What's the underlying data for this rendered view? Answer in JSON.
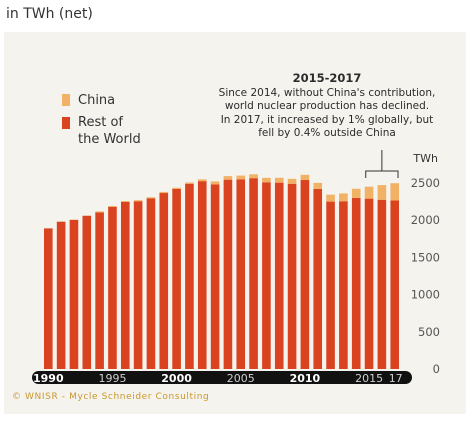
{
  "header": {
    "unit_title": "in TWh (net)"
  },
  "annotation": {
    "title": "2015-2017",
    "lines": [
      "Since 2014, without China's contribution,",
      "world nuclear production has declined.",
      "In 2017, it increased by 1% globally, but",
      "fell by 0.4% outside China"
    ]
  },
  "credit": "© WNISR - Mycle Schneider Consulting",
  "colors": {
    "rest": "#d9431f",
    "china": "#f2b266",
    "axis_band": "#111111"
  },
  "chart_data": {
    "type": "bar",
    "stacked": true,
    "unit_label": "TWh",
    "x": [
      1990,
      1991,
      1992,
      1993,
      1994,
      1995,
      1996,
      1997,
      1998,
      1999,
      2000,
      2001,
      2002,
      2003,
      2004,
      2005,
      2006,
      2007,
      2008,
      2009,
      2010,
      2011,
      2012,
      2013,
      2014,
      2015,
      2016,
      2017
    ],
    "series": [
      {
        "name": "Rest of the World",
        "color": "#d9431f",
        "values": [
          1890,
          1980,
          2005,
          2060,
          2105,
          2180,
          2245,
          2255,
          2295,
          2365,
          2420,
          2490,
          2525,
          2480,
          2545,
          2550,
          2565,
          2510,
          2505,
          2490,
          2540,
          2420,
          2250,
          2255,
          2300,
          2290,
          2275,
          2265
        ]
      },
      {
        "name": "China",
        "color": "#f2b266",
        "values": [
          0,
          0,
          0,
          2,
          13,
          12,
          13,
          14,
          13,
          15,
          16,
          17,
          24,
          41,
          48,
          50,
          52,
          59,
          65,
          66,
          70,
          82,
          93,
          105,
          123,
          161,
          197,
          232
        ]
      }
    ],
    "y_ticks": [
      0,
      500,
      1000,
      1500,
      2000,
      2500
    ],
    "ylim": [
      0,
      2700
    ],
    "x_tick_labels": [
      {
        "year": 1990,
        "label": "1990",
        "bold": true
      },
      {
        "year": 1995,
        "label": "1995",
        "bold": false
      },
      {
        "year": 2000,
        "label": "2000",
        "bold": true
      },
      {
        "year": 2005,
        "label": "2005",
        "bold": false
      },
      {
        "year": 2010,
        "label": "2010",
        "bold": true
      },
      {
        "year": 2015,
        "label": "2015",
        "bold": false
      },
      {
        "year": 2017,
        "label": "17",
        "bold": false
      }
    ],
    "legend": [
      {
        "label_lines": [
          "China"
        ],
        "color": "#f2b266"
      },
      {
        "label_lines": [
          "Rest of",
          "the World"
        ],
        "color": "#d9431f"
      }
    ],
    "legend_position": "left",
    "grid": false
  }
}
